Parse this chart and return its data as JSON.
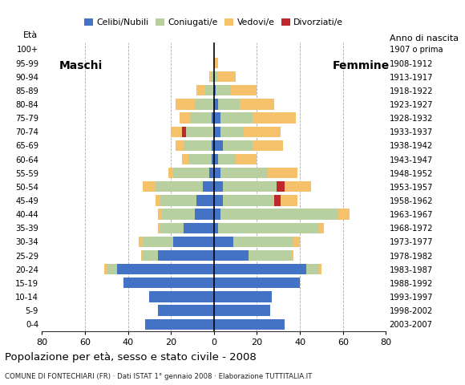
{
  "age_groups_bottom_to_top": [
    "0-4",
    "5-9",
    "10-14",
    "15-19",
    "20-24",
    "25-29",
    "30-34",
    "35-39",
    "40-44",
    "45-49",
    "50-54",
    "55-59",
    "60-64",
    "65-69",
    "70-74",
    "75-79",
    "80-84",
    "85-89",
    "90-94",
    "95-99",
    "100+"
  ],
  "birth_years_bottom_to_top": [
    "2003-2007",
    "1998-2002",
    "1993-1997",
    "1988-1992",
    "1983-1987",
    "1978-1982",
    "1973-1977",
    "1968-1972",
    "1963-1967",
    "1958-1962",
    "1953-1957",
    "1948-1952",
    "1943-1947",
    "1938-1942",
    "1933-1937",
    "1928-1932",
    "1923-1927",
    "1918-1922",
    "1913-1917",
    "1908-1912",
    "1907 o prima"
  ],
  "males_bottom_to_top": {
    "celibe": [
      32,
      26,
      30,
      42,
      45,
      26,
      19,
      14,
      9,
      8,
      5,
      2,
      1,
      1,
      0,
      1,
      0,
      0,
      0,
      0,
      0
    ],
    "coniugato": [
      0,
      0,
      0,
      0,
      5,
      7,
      14,
      11,
      15,
      17,
      22,
      17,
      11,
      13,
      13,
      10,
      9,
      4,
      1,
      0,
      0
    ],
    "vedovo": [
      0,
      0,
      0,
      0,
      1,
      1,
      2,
      1,
      2,
      2,
      6,
      2,
      3,
      4,
      5,
      5,
      9,
      4,
      1,
      0,
      0
    ],
    "divorziato": [
      0,
      0,
      0,
      0,
      0,
      0,
      0,
      0,
      0,
      0,
      0,
      0,
      0,
      0,
      2,
      0,
      0,
      0,
      0,
      0,
      0
    ]
  },
  "females_bottom_to_top": {
    "nubile": [
      33,
      26,
      27,
      40,
      43,
      16,
      9,
      2,
      3,
      4,
      4,
      3,
      2,
      4,
      3,
      3,
      2,
      1,
      0,
      0,
      0
    ],
    "coniugata": [
      0,
      0,
      0,
      0,
      6,
      20,
      28,
      47,
      55,
      24,
      25,
      22,
      8,
      14,
      11,
      15,
      10,
      7,
      2,
      0,
      0
    ],
    "vedova": [
      0,
      0,
      0,
      0,
      1,
      1,
      3,
      2,
      5,
      8,
      12,
      14,
      10,
      14,
      17,
      20,
      16,
      12,
      8,
      2,
      0
    ],
    "divorziata": [
      0,
      0,
      0,
      0,
      0,
      0,
      0,
      0,
      0,
      3,
      4,
      0,
      0,
      0,
      0,
      0,
      0,
      0,
      0,
      0,
      0
    ]
  },
  "colors": {
    "celibe": "#4472c4",
    "coniugato": "#b8cfa0",
    "vedovo": "#f5c26b",
    "divorziato": "#c0272d"
  },
  "xlim": 80,
  "title": "Popolazione per età, sesso e stato civile - 2008",
  "subtitle": "COMUNE DI FONTECHIARI (FR) · Dati ISTAT 1° gennaio 2008 · Elaborazione TUTTITALIA.IT",
  "legend_labels": [
    "Celibi/Nubili",
    "Coniugati/e",
    "Vedovi/e",
    "Divorziati/e"
  ],
  "label_eta": "Età",
  "label_anno": "Anno di nascita",
  "label_maschi": "Maschi",
  "label_femmine": "Femmine"
}
